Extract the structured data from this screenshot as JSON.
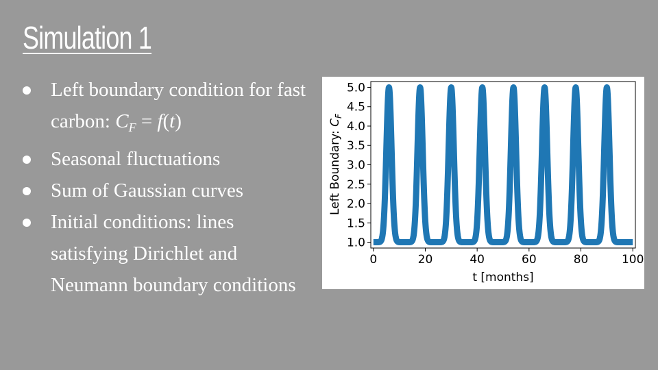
{
  "slide": {
    "title": "Simulation 1",
    "bullets": [
      {
        "text_before": "Left boundary condition for fast carbon: ",
        "math": true
      },
      {
        "text": "Seasonal fluctuations"
      },
      {
        "text": "Sum of Gaussian curves"
      },
      {
        "text": "Initial conditions: lines satisfying Dirichlet and Neumann boundary conditions"
      }
    ],
    "formula": {
      "var": "C",
      "sub": "F",
      "eq": " = ",
      "func": "f",
      "open": "(",
      "arg": "t",
      "close": ")"
    }
  },
  "chart_data": {
    "type": "line",
    "xlabel": "t [months]",
    "ylabel": "Left Boundary: ",
    "ylabel_math": "C",
    "ylabel_sub": "F",
    "xlim": [
      -1,
      101
    ],
    "ylim": [
      0.85,
      5.15
    ],
    "xticks": [
      0,
      20,
      40,
      60,
      80,
      100
    ],
    "yticks": [
      1.0,
      1.5,
      2.0,
      2.5,
      3.0,
      3.5,
      4.0,
      4.5,
      5.0
    ],
    "series": [
      {
        "color": "#1f77b4",
        "baseline": 1.0,
        "amplitude": 4.0,
        "sigma": 1.0,
        "peak_centers": [
          6,
          18,
          30,
          42,
          54,
          66,
          78,
          90
        ],
        "x_range": [
          0,
          100
        ]
      }
    ],
    "grid": false
  }
}
